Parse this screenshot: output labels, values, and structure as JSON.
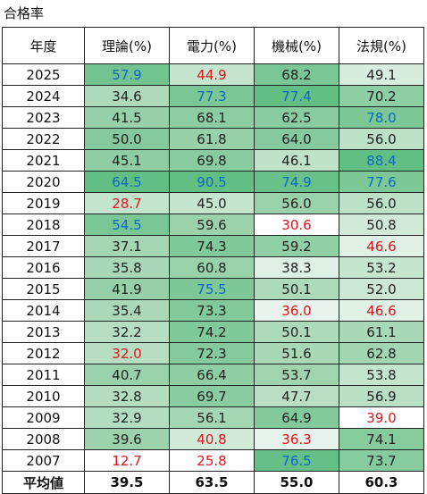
{
  "sheet_title": "合格率",
  "headers": [
    "年度",
    "理論(%)",
    "電力(%)",
    "機械(%)",
    "法規(%)"
  ],
  "palette": {
    "max_green": "#62bf84",
    "mid_green": "#9ed3ae",
    "light_green": "#d8eedf",
    "white": "#ffffff",
    "high_text": "#0a68c8",
    "low_text": "#e0141e"
  },
  "rows": [
    {
      "year": "2025",
      "theory": "57.9",
      "power": "44.9",
      "machine": "68.2",
      "law": "49.1"
    },
    {
      "year": "2024",
      "theory": "34.6",
      "power": "77.3",
      "machine": "77.4",
      "law": "70.2"
    },
    {
      "year": "2023",
      "theory": "41.5",
      "power": "68.1",
      "machine": "62.5",
      "law": "78.0"
    },
    {
      "year": "2022",
      "theory": "50.0",
      "power": "61.8",
      "machine": "64.0",
      "law": "56.0"
    },
    {
      "year": "2021",
      "theory": "45.1",
      "power": "69.8",
      "machine": "46.1",
      "law": "88.4"
    },
    {
      "year": "2020",
      "theory": "64.5",
      "power": "90.5",
      "machine": "74.9",
      "law": "77.6"
    },
    {
      "year": "2019",
      "theory": "28.7",
      "power": "45.0",
      "machine": "56.0",
      "law": "56.0"
    },
    {
      "year": "2018",
      "theory": "54.5",
      "power": "59.6",
      "machine": "30.6",
      "law": "50.8"
    },
    {
      "year": "2017",
      "theory": "37.1",
      "power": "74.3",
      "machine": "59.2",
      "law": "46.6"
    },
    {
      "year": "2016",
      "theory": "35.8",
      "power": "60.8",
      "machine": "38.3",
      "law": "53.2"
    },
    {
      "year": "2015",
      "theory": "41.9",
      "power": "75.5",
      "machine": "50.1",
      "law": "52.0"
    },
    {
      "year": "2014",
      "theory": "35.4",
      "power": "73.3",
      "machine": "36.0",
      "law": "46.6"
    },
    {
      "year": "2013",
      "theory": "32.2",
      "power": "74.2",
      "machine": "50.1",
      "law": "61.1"
    },
    {
      "year": "2012",
      "theory": "32.0",
      "power": "72.3",
      "machine": "51.6",
      "law": "62.8"
    },
    {
      "year": "2011",
      "theory": "40.7",
      "power": "66.4",
      "machine": "53.7",
      "law": "53.8"
    },
    {
      "year": "2010",
      "theory": "32.8",
      "power": "69.7",
      "machine": "47.7",
      "law": "56.9"
    },
    {
      "year": "2009",
      "theory": "32.9",
      "power": "56.1",
      "machine": "64.9",
      "law": "39.0"
    },
    {
      "year": "2008",
      "theory": "39.6",
      "power": "40.8",
      "machine": "36.3",
      "law": "74.1"
    },
    {
      "year": "2007",
      "theory": "12.7",
      "power": "25.8",
      "machine": "76.5",
      "law": "73.7"
    }
  ],
  "average": {
    "label": "平均値",
    "theory": "39.5",
    "power": "63.5",
    "machine": "55.0",
    "law": "60.3"
  }
}
